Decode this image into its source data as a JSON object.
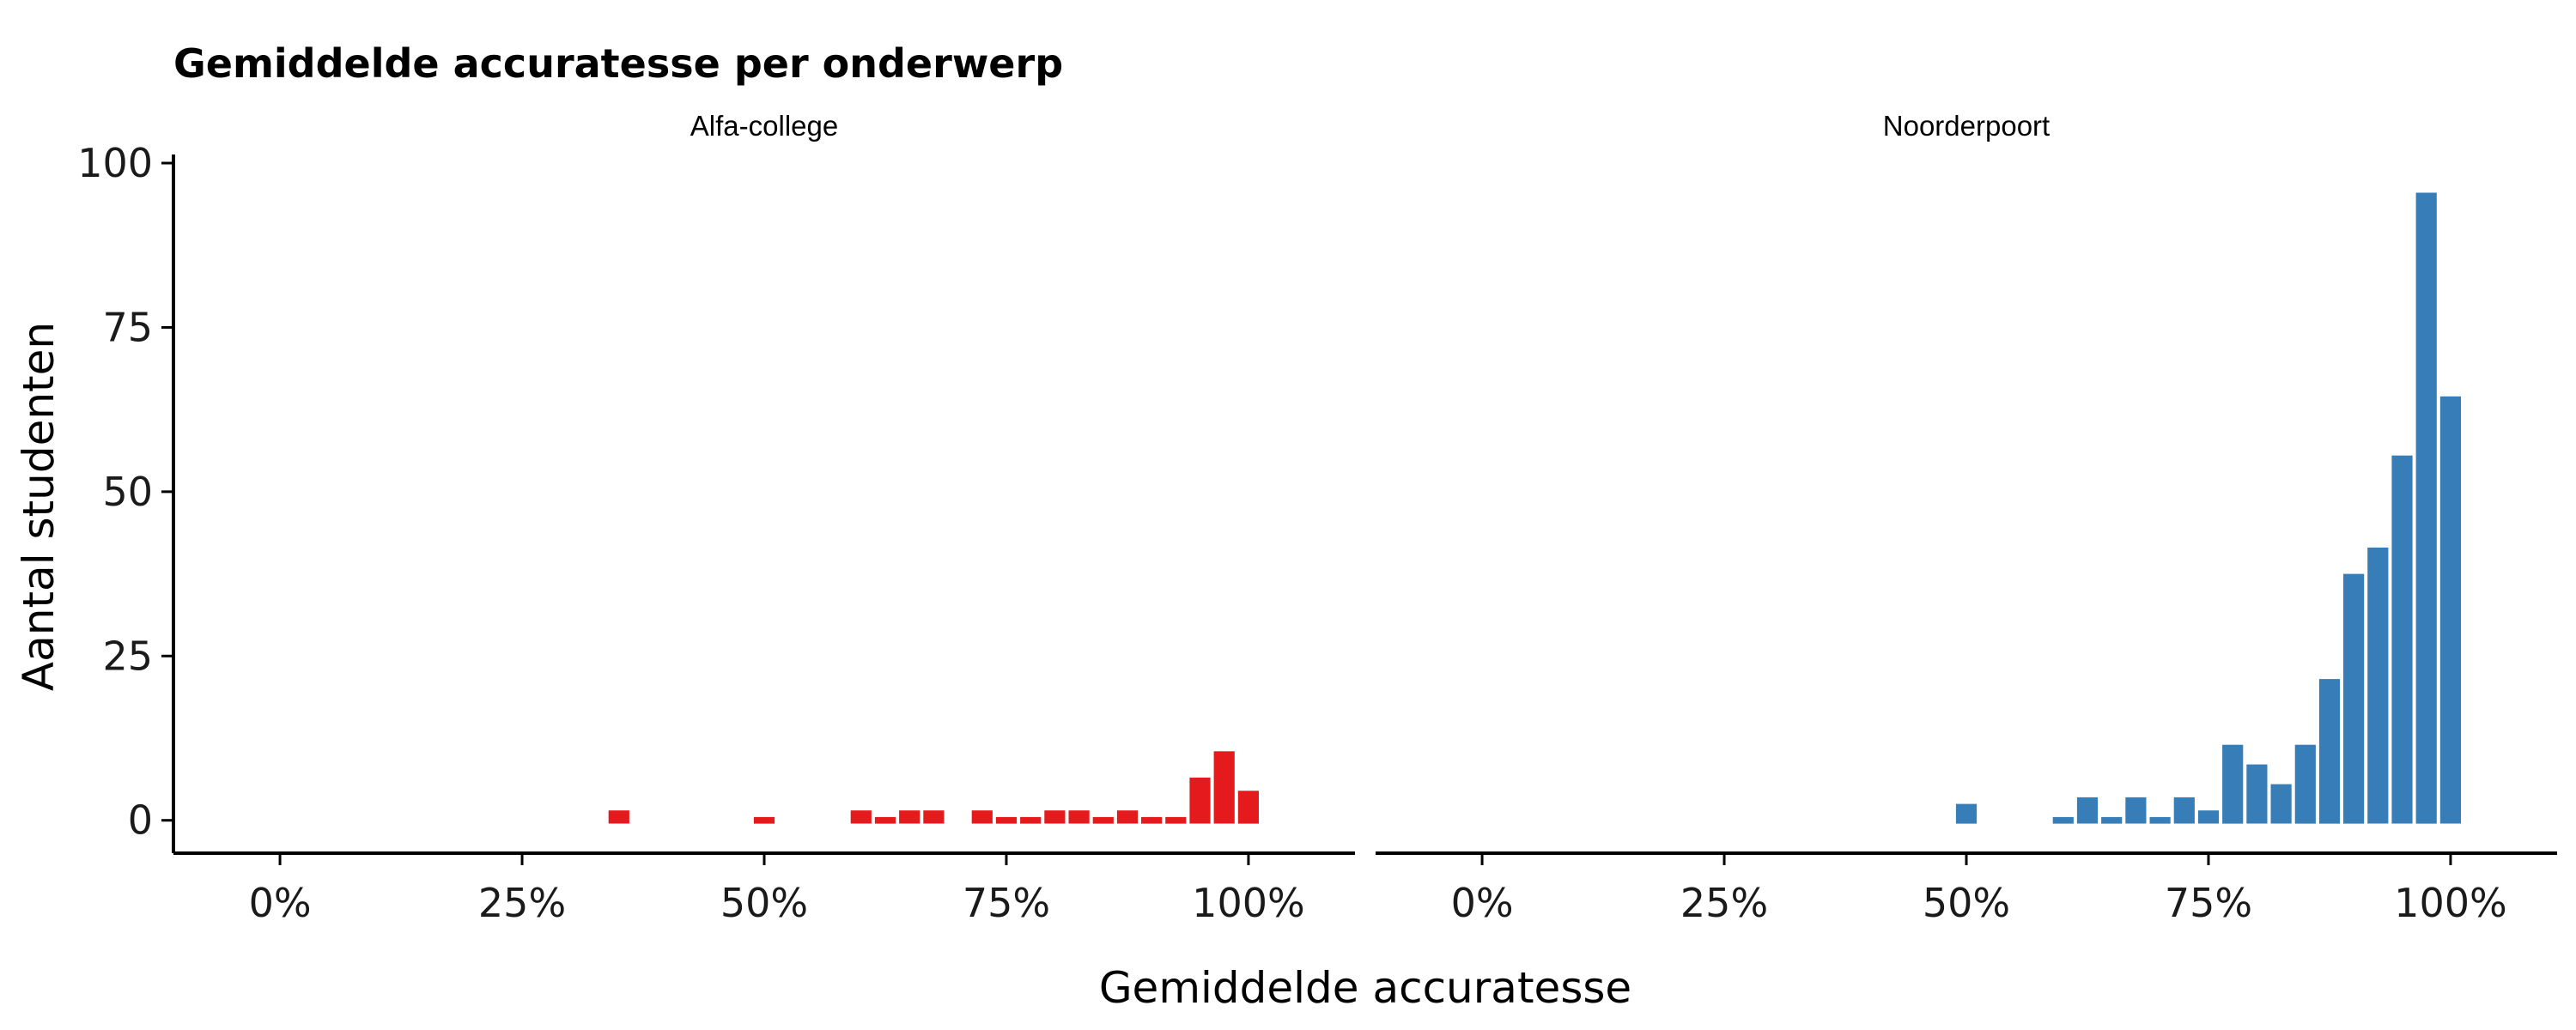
{
  "chart_data": {
    "type": "bar",
    "title": "Gemiddelde accuratesse per onderwerp",
    "xlabel": "Gemiddelde accuratesse",
    "ylabel": "Aantal studenten",
    "xlim": [
      -0.11,
      1.11
    ],
    "ylim": [
      -5,
      100
    ],
    "x_ticks": [
      0,
      0.25,
      0.5,
      0.75,
      1.0
    ],
    "x_tick_labels": [
      "0%",
      "25%",
      "50%",
      "75%",
      "100%"
    ],
    "y_ticks": [
      0,
      25,
      50,
      75,
      100
    ],
    "y_tick_labels": [
      "0",
      "25",
      "50",
      "75",
      "100"
    ],
    "bin_width": 0.025,
    "grid": false,
    "panels": [
      {
        "name": "Alfa-college",
        "color": "#E41A1C",
        "bins": [
          {
            "x": 0.35,
            "count": 1.5
          },
          {
            "x": 0.5,
            "count": 0.5
          },
          {
            "x": 0.6,
            "count": 1.5
          },
          {
            "x": 0.625,
            "count": 0.5
          },
          {
            "x": 0.65,
            "count": 1.5
          },
          {
            "x": 0.675,
            "count": 1.5
          },
          {
            "x": 0.725,
            "count": 1.5
          },
          {
            "x": 0.75,
            "count": 0.5
          },
          {
            "x": 0.775,
            "count": 0.5
          },
          {
            "x": 0.8,
            "count": 1.5
          },
          {
            "x": 0.825,
            "count": 1.5
          },
          {
            "x": 0.85,
            "count": 0.5
          },
          {
            "x": 0.875,
            "count": 1.5
          },
          {
            "x": 0.9,
            "count": 0.5
          },
          {
            "x": 0.925,
            "count": 0.5
          },
          {
            "x": 0.95,
            "count": 6.5
          },
          {
            "x": 0.975,
            "count": 10.5
          },
          {
            "x": 1.0,
            "count": 4.5
          }
        ]
      },
      {
        "name": "Noorderpoort",
        "color": "#377EB8",
        "bins": [
          {
            "x": 0.5,
            "count": 2.5
          },
          {
            "x": 0.6,
            "count": 0.5
          },
          {
            "x": 0.625,
            "count": 3.5
          },
          {
            "x": 0.65,
            "count": 0.5
          },
          {
            "x": 0.675,
            "count": 3.5
          },
          {
            "x": 0.7,
            "count": 0.5
          },
          {
            "x": 0.725,
            "count": 3.5
          },
          {
            "x": 0.75,
            "count": 1.5
          },
          {
            "x": 0.775,
            "count": 11.5
          },
          {
            "x": 0.8,
            "count": 8.5
          },
          {
            "x": 0.825,
            "count": 5.5
          },
          {
            "x": 0.85,
            "count": 11.5
          },
          {
            "x": 0.875,
            "count": 21.5
          },
          {
            "x": 0.9,
            "count": 37.5
          },
          {
            "x": 0.925,
            "count": 41.5
          },
          {
            "x": 0.95,
            "count": 55.5
          },
          {
            "x": 0.975,
            "count": 95.5
          },
          {
            "x": 1.0,
            "count": 64.5
          }
        ]
      }
    ]
  }
}
